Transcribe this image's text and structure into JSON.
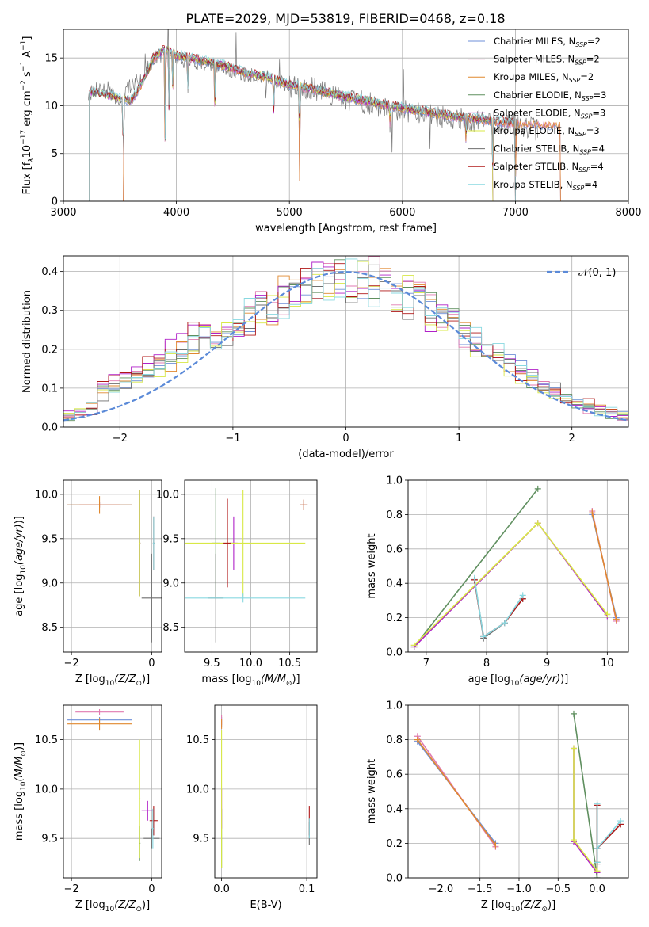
{
  "figure_title": "PLATE=2029, MJD=53819, FIBERID=0468, z=0.18",
  "model_colors": [
    "#6e8fd8",
    "#e07ab0",
    "#e0882f",
    "#5f8f5f",
    "#b020c8",
    "#d8e845",
    "#6e6e6e",
    "#b01818",
    "#88d8e0"
  ],
  "chart_data": [
    {
      "id": "spectrum",
      "type": "line",
      "xlabel": "wavelength [Angstrom, rest frame]",
      "ylabel": "Flux [f",
      "xlim": [
        3000,
        8000
      ],
      "ylim": [
        0,
        18
      ],
      "xticks": [
        3000,
        4000,
        5000,
        6000,
        7000,
        8000
      ],
      "yticks": [
        0,
        5,
        10,
        15
      ],
      "legend_position": "upper-right",
      "legend": [
        {
          "name": "Chabrier MILES",
          "n": 2
        },
        {
          "name": "Salpeter MILES",
          "n": 2
        },
        {
          "name": "Kroupa MILES",
          "n": 2
        },
        {
          "name": "Chabrier ELODIE",
          "n": 3
        },
        {
          "name": "Salpeter ELODIE",
          "n": 3
        },
        {
          "name": "Kroupa ELODIE",
          "n": 3
        },
        {
          "name": "Chabrier STELIB",
          "n": 4
        },
        {
          "name": "Salpeter STELIB",
          "n": 4
        },
        {
          "name": "Kroupa STELIB",
          "n": 4
        }
      ],
      "data_trace": {
        "x": [
          3220,
          3300,
          3400,
          3500,
          3600,
          3700,
          3800,
          3900,
          4000,
          4200,
          4400,
          4600,
          4800,
          5000,
          5200,
          5400,
          5600,
          5800,
          6000,
          6200,
          6400,
          6600,
          6800,
          7000,
          7200
        ],
        "y": [
          11.0,
          12.0,
          11.5,
          10.5,
          12.2,
          13.0,
          15.0,
          15.5,
          15.0,
          14.5,
          14.0,
          13.2,
          13.0,
          12.0,
          11.8,
          11.0,
          10.5,
          10.0,
          9.5,
          9.0,
          8.8,
          8.5,
          8.3,
          8.0,
          7.5
        ]
      },
      "model_continuum": {
        "x": [
          3220,
          3400,
          3600,
          3700,
          3800,
          3900,
          4000,
          4200,
          4400,
          4600,
          4800,
          5000,
          5200,
          5400,
          5600,
          5800,
          6000,
          6200,
          6400,
          6600,
          6800,
          7000,
          7400
        ],
        "y": [
          11.5,
          11.0,
          10.5,
          12.5,
          15.0,
          16.0,
          15.3,
          14.8,
          14.3,
          13.5,
          13.0,
          12.2,
          11.8,
          11.2,
          10.7,
          10.2,
          9.8,
          9.4,
          9.0,
          8.7,
          8.4,
          8.2,
          8.0
        ]
      },
      "model_ranges": [
        {
          "model": 0,
          "start": 3530,
          "end": 7400
        },
        {
          "model": 1,
          "start": 3530,
          "end": 7400
        },
        {
          "model": 2,
          "start": 3530,
          "end": 7400
        },
        {
          "model": 3,
          "start": 3230,
          "end": 6800
        },
        {
          "model": 4,
          "start": 3230,
          "end": 6800
        },
        {
          "model": 5,
          "start": 3230,
          "end": 6800
        },
        {
          "model": 6,
          "start": 3230,
          "end": 7000
        },
        {
          "model": 7,
          "start": 3230,
          "end": 7000
        },
        {
          "model": 8,
          "start": 3230,
          "end": 7000
        }
      ],
      "absorption_dips": [
        {
          "x": 3530,
          "depth": 11
        },
        {
          "x": 3900,
          "depth": 14
        },
        {
          "x": 3934,
          "depth": 6
        },
        {
          "x": 3968,
          "depth": 5
        },
        {
          "x": 4101,
          "depth": 4
        },
        {
          "x": 4340,
          "depth": 6
        },
        {
          "x": 4861,
          "depth": 4
        },
        {
          "x": 5090,
          "depth": 10
        },
        {
          "x": 5890,
          "depth": 2
        },
        {
          "x": 6563,
          "depth": 3
        },
        {
          "x": 6800,
          "depth": 7
        },
        {
          "x": 7000,
          "depth": 8
        }
      ]
    },
    {
      "id": "residuals",
      "type": "histogram",
      "xlabel": "(data-model)/error",
      "ylabel": "Normed distribution",
      "xlim": [
        -2.5,
        2.5
      ],
      "ylim": [
        0,
        0.44
      ],
      "xticks": [
        -2,
        -1,
        0,
        1,
        2
      ],
      "yticks": [
        0.0,
        0.1,
        0.2,
        0.3,
        0.4
      ],
      "reference_label": "𝒩(0, 1)",
      "reference_color": "#5b8ad8",
      "bin_width": 0.1,
      "note": "9 step histograms (one per model), following a unit normal distribution"
    },
    {
      "id": "age_vs_Z",
      "type": "errorbar",
      "xlabel": "Z [log",
      "ylabel": "age  [log",
      "xlim": [
        -2.2,
        0.25
      ],
      "ylim": [
        8.22,
        10.16
      ],
      "xticks": [
        -2,
        0
      ],
      "yticks": [
        8.5,
        9.0,
        9.5,
        10.0
      ],
      "points": [
        {
          "model": 0,
          "x": -1.3,
          "xerr": 0.8,
          "y": 9.88,
          "yerr": 0.03
        },
        {
          "model": 1,
          "x": -1.3,
          "xerr": 0.5,
          "y": 9.88,
          "yerr": 0.03
        },
        {
          "model": 2,
          "x": -1.3,
          "xerr": 0.8,
          "y": 9.88,
          "yerr": 0.1
        },
        {
          "model": 3,
          "x": -0.3,
          "xerr": 0.02,
          "y": 9.45,
          "yerr": 0.6
        },
        {
          "model": 4,
          "x": -0.3,
          "xerr": 0.02,
          "y": 9.45,
          "yerr": 0.6
        },
        {
          "model": 5,
          "x": -0.3,
          "xerr": 0.02,
          "y": 9.45,
          "yerr": 0.6
        },
        {
          "model": 6,
          "x": 0.0,
          "xerr": 0.25,
          "y": 8.83,
          "yerr": 0.5
        },
        {
          "model": 7,
          "x": 0.05,
          "xerr": 0.02,
          "y": 9.45,
          "yerr": 0.3
        },
        {
          "model": 8,
          "x": 0.05,
          "xerr": 0.02,
          "y": 9.45,
          "yerr": 0.3
        }
      ]
    },
    {
      "id": "age_vs_mass",
      "type": "errorbar",
      "xlabel": "mass [log",
      "ylabel": "",
      "xlim": [
        9.15,
        10.85
      ],
      "ylim": [
        8.22,
        10.16
      ],
      "xticks": [
        9.5,
        10.0,
        10.5
      ],
      "yticks": [
        8.5,
        9.0,
        9.5,
        10.0
      ],
      "points": [
        {
          "model": 0,
          "x": 10.68,
          "xerr": 0.05,
          "y": 9.88,
          "yerr": 0.06
        },
        {
          "model": 1,
          "x": 10.68,
          "xerr": 0.05,
          "y": 9.88,
          "yerr": 0.06
        },
        {
          "model": 2,
          "x": 10.68,
          "xerr": 0.05,
          "y": 9.88,
          "yerr": 0.06
        },
        {
          "model": 3,
          "x": 9.55,
          "xerr": 0.05,
          "y": 9.45,
          "yerr": 0.62
        },
        {
          "model": 4,
          "x": 9.78,
          "xerr": 0.05,
          "y": 9.45,
          "yerr": 0.3
        },
        {
          "model": 5,
          "x": 9.9,
          "xerr": 0.8,
          "y": 9.45,
          "yerr": 0.6
        },
        {
          "model": 6,
          "x": 9.55,
          "xerr": 0.1,
          "y": 8.83,
          "yerr": 0.5
        },
        {
          "model": 7,
          "x": 9.7,
          "xerr": 0.05,
          "y": 9.45,
          "yerr": 0.5
        },
        {
          "model": 8,
          "x": 9.9,
          "xerr": 0.8,
          "y": 8.83,
          "yerr": 0.05
        }
      ]
    },
    {
      "id": "weight_vs_age",
      "type": "line",
      "xlabel": "age  [log",
      "ylabel": "mass weight",
      "xlim": [
        6.7,
        10.35
      ],
      "ylim": [
        0,
        1.0
      ],
      "xticks": [
        7,
        8,
        9,
        10
      ],
      "yticks": [
        0.0,
        0.2,
        0.4,
        0.6,
        0.8,
        1.0
      ],
      "series": [
        {
          "model": 0,
          "x": [
            9.75,
            10.15
          ],
          "y": [
            0.8,
            0.2
          ]
        },
        {
          "model": 1,
          "x": [
            9.75,
            10.15
          ],
          "y": [
            0.82,
            0.18
          ]
        },
        {
          "model": 2,
          "x": [
            9.75,
            10.15
          ],
          "y": [
            0.81,
            0.19
          ]
        },
        {
          "model": 3,
          "x": [
            6.8,
            8.85
          ],
          "y": [
            0.03,
            0.95
          ]
        },
        {
          "model": 4,
          "x": [
            6.8,
            8.85,
            10.0
          ],
          "y": [
            0.03,
            0.75,
            0.21
          ]
        },
        {
          "model": 5,
          "x": [
            6.8,
            8.85,
            10.0
          ],
          "y": [
            0.04,
            0.75,
            0.22
          ]
        },
        {
          "model": 6,
          "x": [
            7.8,
            7.95,
            8.3,
            8.6
          ],
          "y": [
            0.42,
            0.08,
            0.17,
            0.31
          ]
        },
        {
          "model": 7,
          "x": [
            7.8,
            7.95,
            8.3,
            8.6
          ],
          "y": [
            0.42,
            0.09,
            0.17,
            0.31
          ]
        },
        {
          "model": 8,
          "x": [
            7.8,
            7.95,
            8.3,
            8.6
          ],
          "y": [
            0.43,
            0.09,
            0.17,
            0.33
          ]
        }
      ]
    },
    {
      "id": "mass_vs_Z",
      "type": "errorbar",
      "xlabel": "Z [log",
      "ylabel": "mass [log",
      "xlim": [
        -2.2,
        0.25
      ],
      "ylim": [
        9.1,
        10.85
      ],
      "xticks": [
        -2,
        0
      ],
      "yticks": [
        9.5,
        10.0,
        10.5
      ],
      "points": [
        {
          "model": 0,
          "x": -1.3,
          "xerr": 0.8,
          "y": 10.7,
          "yerr": 0.03
        },
        {
          "model": 1,
          "x": -1.3,
          "xerr": 0.6,
          "y": 10.78,
          "yerr": 0.03
        },
        {
          "model": 2,
          "x": -1.3,
          "xerr": 0.8,
          "y": 10.66,
          "yerr": 0.06
        },
        {
          "model": 3,
          "x": -0.3,
          "xerr": 0.02,
          "y": 9.45,
          "yerr": 0.18
        },
        {
          "model": 4,
          "x": -0.1,
          "xerr": 0.15,
          "y": 9.78,
          "yerr": 0.1
        },
        {
          "model": 5,
          "x": -0.3,
          "xerr": 0.02,
          "y": 9.9,
          "yerr": 0.6
        },
        {
          "model": 6,
          "x": 0.0,
          "xerr": 0.2,
          "y": 9.5,
          "yerr": 0.1
        },
        {
          "model": 7,
          "x": 0.05,
          "xerr": 0.1,
          "y": 9.68,
          "yerr": 0.15
        },
        {
          "model": 8,
          "x": 0.03,
          "xerr": 0.02,
          "y": 9.6,
          "yerr": 0.2
        }
      ]
    },
    {
      "id": "mass_vs_ebv",
      "type": "errorbar",
      "xlabel": "E(B-V)",
      "ylabel": "",
      "xlim": [
        -0.008,
        0.112
      ],
      "ylim": [
        9.1,
        10.85
      ],
      "xticks": [
        0.0,
        0.1
      ],
      "yticks": [
        9.5,
        10.0,
        10.5
      ],
      "points": [
        {
          "model": 0,
          "x": 0.0,
          "xerr": 0.0,
          "y": 10.68,
          "yerr": 0.05
        },
        {
          "model": 1,
          "x": 0.0,
          "xerr": 0.0,
          "y": 10.7,
          "yerr": 0.05
        },
        {
          "model": 2,
          "x": 0.0,
          "xerr": 0.0,
          "y": 10.66,
          "yerr": 0.05
        },
        {
          "model": 3,
          "x": 0.0,
          "xerr": 0.0,
          "y": 9.5,
          "yerr": 0.3
        },
        {
          "model": 4,
          "x": 0.0,
          "xerr": 0.0,
          "y": 9.8,
          "yerr": 0.2
        },
        {
          "model": 5,
          "x": 0.0,
          "xerr": 0.0,
          "y": 9.9,
          "yerr": 0.7
        },
        {
          "model": 6,
          "x": 0.103,
          "xerr": 0.0,
          "y": 9.55,
          "yerr": 0.12
        },
        {
          "model": 7,
          "x": 0.103,
          "xerr": 0.0,
          "y": 9.68,
          "yerr": 0.15
        },
        {
          "model": 8,
          "x": 0.103,
          "xerr": 0.0,
          "y": 9.6,
          "yerr": 0.1
        }
      ]
    },
    {
      "id": "weight_vs_Z",
      "type": "line",
      "xlabel": "Z [log",
      "ylabel": "mass weight",
      "xlim": [
        -2.42,
        0.4
      ],
      "ylim": [
        0,
        1.0
      ],
      "xticks": [
        -2.0,
        -1.5,
        -1.0,
        -0.5,
        0.0
      ],
      "yticks": [
        0.0,
        0.2,
        0.4,
        0.6,
        0.8,
        1.0
      ],
      "series": [
        {
          "model": 0,
          "x": [
            -2.3,
            -1.3
          ],
          "y": [
            0.79,
            0.2
          ]
        },
        {
          "model": 1,
          "x": [
            -2.3,
            -1.3
          ],
          "y": [
            0.82,
            0.18
          ]
        },
        {
          "model": 2,
          "x": [
            -2.3,
            -1.3
          ],
          "y": [
            0.8,
            0.19
          ]
        },
        {
          "model": 3,
          "x": [
            -0.3,
            0.0
          ],
          "y": [
            0.95,
            0.0
          ]
        },
        {
          "model": 4,
          "x": [
            -0.3,
            -0.3,
            0.0,
            0.0
          ],
          "y": [
            0.75,
            0.21,
            0.03,
            0.42
          ]
        },
        {
          "model": 5,
          "x": [
            -0.3,
            -0.3,
            0.0,
            0.0
          ],
          "y": [
            0.75,
            0.22,
            0.04,
            0.42
          ]
        },
        {
          "model": 6,
          "x": [
            0.0,
            0.0,
            0.0,
            0.3
          ],
          "y": [
            0.42,
            0.08,
            0.17,
            0.31
          ]
        },
        {
          "model": 7,
          "x": [
            0.0,
            0.0,
            0.0,
            0.3
          ],
          "y": [
            0.42,
            0.09,
            0.17,
            0.31
          ]
        },
        {
          "model": 8,
          "x": [
            0.0,
            0.0,
            0.0,
            0.3
          ],
          "y": [
            0.43,
            0.09,
            0.17,
            0.33
          ]
        }
      ]
    }
  ]
}
